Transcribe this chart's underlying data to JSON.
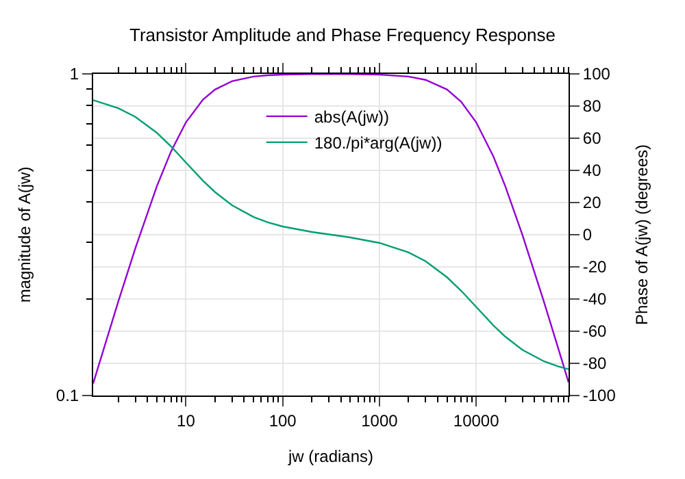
{
  "chart_data": {
    "type": "line",
    "title": "Transistor Amplitude and Phase Frequency Response",
    "xlabel": "jw (radians)",
    "ylabel": "magnitude of A(jw)",
    "y2label": "Phase of A(jw) (degrees)",
    "x": [
      1.1,
      2,
      3,
      5,
      7,
      10,
      15,
      20,
      30,
      50,
      70,
      100,
      200,
      500,
      1000,
      2000,
      3000,
      5000,
      7000,
      10000,
      15000,
      20000,
      30000,
      50000,
      70000,
      90000
    ],
    "series": [
      {
        "name": "abs(A(jw))",
        "color": "#9400d3",
        "values": [
          0.109,
          0.196,
          0.287,
          0.447,
          0.573,
          0.707,
          0.832,
          0.894,
          0.949,
          0.981,
          0.99,
          0.995,
          0.999,
          0.999,
          0.995,
          0.981,
          0.958,
          0.894,
          0.819,
          0.707,
          0.555,
          0.447,
          0.316,
          0.196,
          0.141,
          0.11
        ]
      },
      {
        "name": "180./pi*arg(A(jw))",
        "color": "#009e73",
        "axis": "y2",
        "values": [
          83.7,
          78.7,
          73.3,
          63.4,
          55.0,
          44.9,
          33.6,
          26.5,
          18.3,
          11.0,
          7.7,
          5.1,
          1.7,
          -1.7,
          -5.1,
          -11.0,
          -16.5,
          -26.5,
          -34.9,
          -44.9,
          -56.3,
          -63.4,
          -71.6,
          -78.7,
          -81.9,
          -83.7
        ]
      }
    ],
    "log": "xy",
    "xlim": [
      1.1,
      90000
    ],
    "xticks": [
      {
        "value": 2,
        "label": null
      },
      {
        "value": 3,
        "label": null
      },
      {
        "value": 4,
        "label": null
      },
      {
        "value": 5,
        "label": null
      },
      {
        "value": 6,
        "label": null
      },
      {
        "value": 7,
        "label": null
      },
      {
        "value": 8,
        "label": null
      },
      {
        "value": 9,
        "label": null
      },
      10,
      {
        "value": 20,
        "label": null
      },
      {
        "value": 30,
        "label": null
      },
      {
        "value": 40,
        "label": null
      },
      {
        "value": 50,
        "label": null
      },
      {
        "value": 60,
        "label": null
      },
      {
        "value": 70,
        "label": null
      },
      {
        "value": 80,
        "label": null
      },
      {
        "value": 90,
        "label": null
      },
      100,
      {
        "value": 200,
        "label": null
      },
      {
        "value": 300,
        "label": null
      },
      {
        "value": 400,
        "label": null
      },
      {
        "value": 500,
        "label": null
      },
      {
        "value": 600,
        "label": null
      },
      {
        "value": 700,
        "label": null
      },
      {
        "value": 800,
        "label": null
      },
      {
        "value": 900,
        "label": null
      },
      1000,
      {
        "value": 2000,
        "label": null
      },
      {
        "value": 3000,
        "label": null
      },
      {
        "value": 4000,
        "label": null
      },
      {
        "value": 5000,
        "label": null
      },
      {
        "value": 6000,
        "label": null
      },
      {
        "value": 7000,
        "label": null
      },
      {
        "value": 8000,
        "label": null
      },
      {
        "value": 9000,
        "label": null
      },
      10000,
      {
        "value": 20000,
        "label": null
      },
      {
        "value": 30000,
        "label": null
      },
      {
        "value": 40000,
        "label": null
      },
      {
        "value": 50000,
        "label": null
      },
      {
        "value": 60000,
        "label": null
      },
      {
        "value": 70000,
        "label": null
      },
      {
        "value": 80000,
        "label": null
      },
      {
        "value": 90000,
        "label": null
      }
    ],
    "ylim": [
      0.1,
      1
    ],
    "yticks": [
      0.1,
      {
        "value": 0.2,
        "label": null
      },
      {
        "value": 0.3,
        "label": null
      },
      {
        "value": 0.4,
        "label": null
      },
      {
        "value": 0.5,
        "label": null
      },
      {
        "value": 0.6,
        "label": null
      },
      {
        "value": 0.7,
        "label": null
      },
      {
        "value": 0.8,
        "label": null
      },
      {
        "value": 0.9,
        "label": null
      },
      1
    ],
    "y2lim": [
      -100,
      100
    ],
    "y2ticks": [
      -100,
      -80,
      -60,
      -40,
      -20,
      0,
      20,
      40,
      60,
      80,
      100
    ],
    "grid": true,
    "legend": "top",
    "marker": "none",
    "line_style": "solid"
  }
}
